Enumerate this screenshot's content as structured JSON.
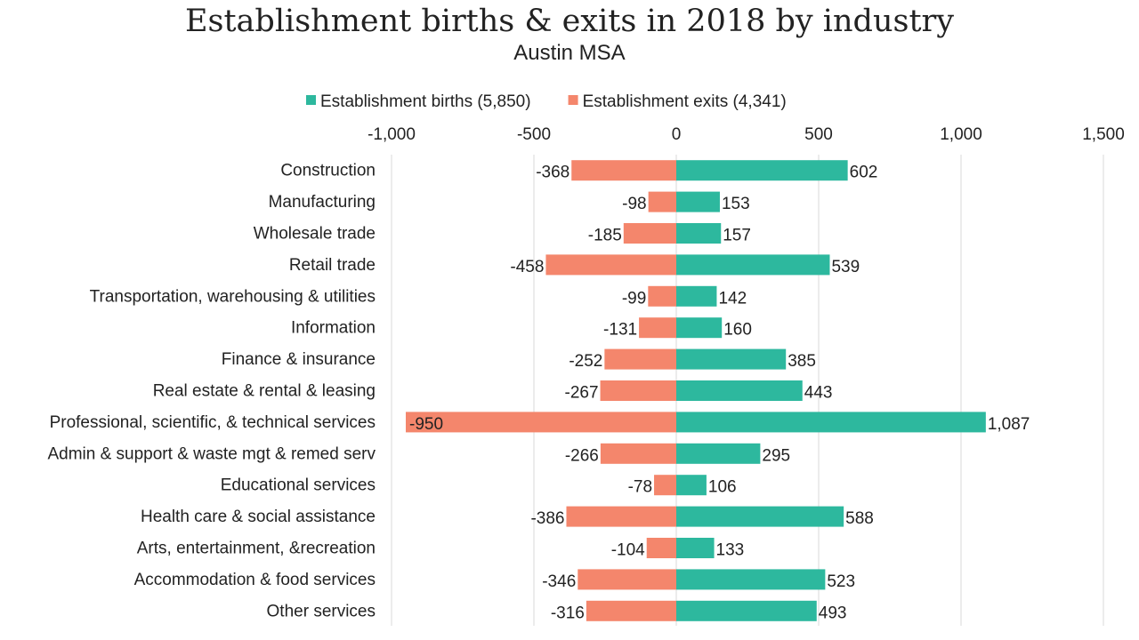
{
  "chart_data": {
    "type": "bar",
    "orientation": "horizontal",
    "title": "Establishment births & exits in 2018 by industry",
    "subtitle": "Austin MSA",
    "categories": [
      "Construction",
      "Manufacturing",
      "Wholesale trade",
      "Retail trade",
      "Transportation, warehousing & utilities",
      "Information",
      "Finance & insurance",
      "Real estate & rental & leasing",
      "Professional, scientific, & technical services",
      "Admin & support & waste mgt & remed serv",
      "Educational services",
      "Health care & social assistance",
      "Arts, entertainment, &recreation",
      "Accommodation & food services",
      "Other services"
    ],
    "series": [
      {
        "name": "Establishment births (5,850)",
        "color": "#2db89e",
        "values": [
          602,
          153,
          157,
          539,
          142,
          160,
          385,
          443,
          1087,
          295,
          106,
          588,
          133,
          523,
          493
        ],
        "labels": [
          "602",
          "153",
          "157",
          "539",
          "142",
          "160",
          "385",
          "443",
          "1,087",
          "295",
          "106",
          "588",
          "133",
          "523",
          "493"
        ]
      },
      {
        "name": "Establishment exits (4,341)",
        "color": "#f4866c",
        "values": [
          -368,
          -98,
          -185,
          -458,
          -99,
          -131,
          -252,
          -267,
          -950,
          -266,
          -78,
          -386,
          -104,
          -346,
          -316
        ],
        "labels": [
          "-368",
          "-98",
          "-185",
          "-458",
          "-99",
          "-131",
          "-252",
          "-267",
          "-950",
          "-266",
          "-78",
          "-386",
          "-104",
          "-346",
          "-316"
        ]
      }
    ],
    "xlim": [
      -1000,
      1500
    ],
    "xticks": [
      -1000,
      -500,
      0,
      500,
      1000,
      1500
    ],
    "xtick_labels": [
      "-1,000",
      "-500",
      "0",
      "500",
      "1,000",
      "1,500"
    ],
    "axis_position": "top",
    "grid": true,
    "legend_position": "top"
  }
}
